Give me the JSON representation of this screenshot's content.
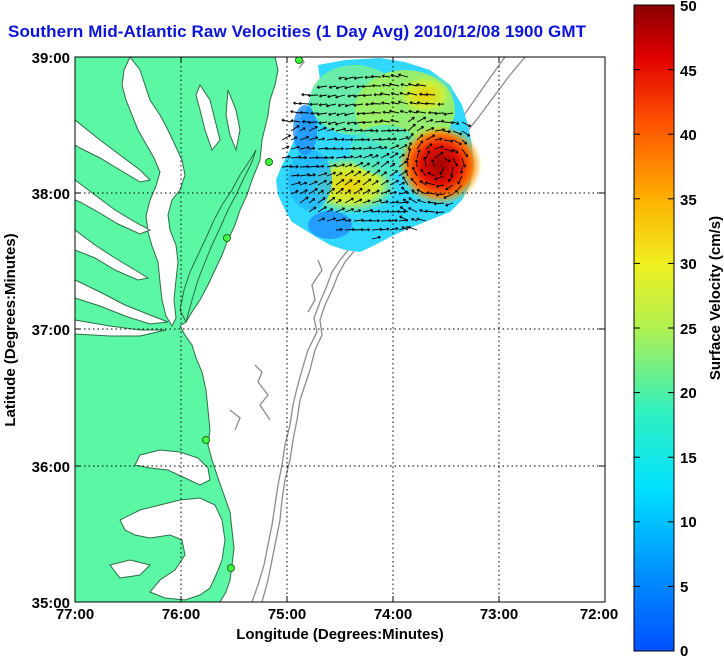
{
  "title": "Southern Mid-Atlantic Raw Velocities (1 Day Avg) 2010/12/08 1900 GMT",
  "xlabel": "Longitude (Degrees:Minutes)",
  "ylabel": "Latitude (Degrees:Minutes)",
  "x_ticks": [
    "77:00",
    "76:00",
    "75:00",
    "74:00",
    "73:00",
    "72:00"
  ],
  "y_ticks": [
    "39:00",
    "38:00",
    "37:00",
    "36:00",
    "35:00"
  ],
  "colorbar": {
    "label": "Surface Velocity (cm/s)",
    "ticks": [
      "50",
      "45",
      "40",
      "35",
      "30",
      "25",
      "20",
      "15",
      "10",
      "5",
      "0"
    ],
    "range": [
      0,
      50
    ]
  },
  "colors": {
    "land": "#5cf7a5",
    "land_edge": "#2b6e45",
    "title": "#0b14d8",
    "bathymetry": "#8c8c8c"
  },
  "map_extent": {
    "lon": [
      -77,
      -72
    ],
    "lat": [
      35,
      39
    ]
  }
}
